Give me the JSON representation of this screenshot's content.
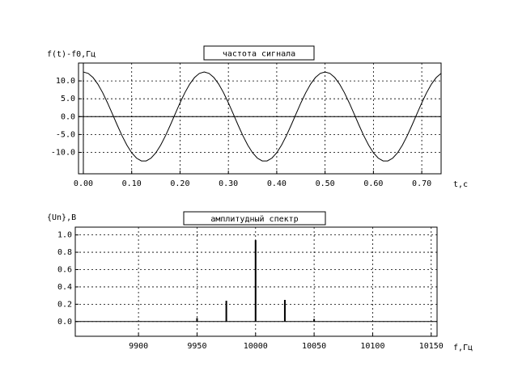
{
  "chart_data": [
    {
      "type": "line",
      "title": "частота сигнала",
      "ylabel": "f(t)-f0,Гц",
      "xlabel": "t,c",
      "x": [
        0.0,
        0.01,
        0.02,
        0.03,
        0.04,
        0.05,
        0.06,
        0.07,
        0.08,
        0.09,
        0.1,
        0.11,
        0.12,
        0.13,
        0.14,
        0.15,
        0.16,
        0.17,
        0.18,
        0.19,
        0.2,
        0.21,
        0.22,
        0.23,
        0.24,
        0.25,
        0.26,
        0.27,
        0.28,
        0.29,
        0.3,
        0.31,
        0.32,
        0.33,
        0.34,
        0.35,
        0.36,
        0.37,
        0.38,
        0.39,
        0.4,
        0.41,
        0.42,
        0.43,
        0.44,
        0.45,
        0.46,
        0.47,
        0.48,
        0.49,
        0.5,
        0.51,
        0.52,
        0.53,
        0.54,
        0.55,
        0.56,
        0.57,
        0.58,
        0.59,
        0.6,
        0.61,
        0.62,
        0.63,
        0.64,
        0.65,
        0.66,
        0.67,
        0.68,
        0.69,
        0.7,
        0.71,
        0.72,
        0.73,
        0.74
      ],
      "values": [
        12.5,
        12.11,
        10.95,
        9.11,
        6.7,
        3.86,
        0.78,
        -2.34,
        -5.32,
        -7.97,
        -10.11,
        -11.62,
        -12.4,
        -12.4,
        -11.62,
        -10.11,
        -7.97,
        -5.32,
        -2.34,
        0.78,
        3.86,
        6.7,
        9.11,
        10.95,
        12.11,
        12.5,
        12.11,
        10.95,
        9.11,
        6.7,
        3.86,
        0.78,
        -2.34,
        -5.32,
        -7.97,
        -10.11,
        -11.62,
        -12.4,
        -12.4,
        -11.62,
        -10.11,
        -7.97,
        -5.32,
        -2.34,
        0.78,
        3.86,
        6.7,
        9.11,
        10.95,
        12.11,
        12.5,
        12.11,
        10.95,
        9.11,
        6.7,
        3.86,
        0.78,
        -2.34,
        -5.32,
        -7.97,
        -10.11,
        -11.62,
        -12.4,
        -12.4,
        -11.62,
        -10.11,
        -7.97,
        -5.32,
        -2.34,
        0.78,
        3.86,
        6.7,
        9.11,
        10.95,
        12.11
      ],
      "color": "#000000",
      "xlim": [
        -0.01,
        0.74
      ],
      "xticks": [
        {
          "value": 0,
          "label": "0.00"
        },
        {
          "value": 0.1,
          "label": "0.10"
        },
        {
          "value": 0.2,
          "label": "0.20"
        },
        {
          "value": 0.3,
          "label": "0.30"
        },
        {
          "value": 0.4,
          "label": "0.40"
        },
        {
          "value": 0.5,
          "label": "0.50"
        },
        {
          "value": 0.6,
          "label": "0.60"
        },
        {
          "value": 0.7,
          "label": "0.70"
        }
      ],
      "ylim": [
        -16,
        15
      ],
      "yticks": [
        {
          "value": -10,
          "label": "-10.0"
        },
        {
          "value": -5,
          "label": "-5.0"
        },
        {
          "value": 0,
          "label": "0.0"
        },
        {
          "value": 5,
          "label": "5.0"
        },
        {
          "value": 10,
          "label": "10.0"
        }
      ],
      "grid": true
    },
    {
      "type": "bar",
      "title": "амплитудный спектр",
      "ylabel": "{Un},B",
      "xlabel": "f,Гц",
      "x": [
        9950,
        9975,
        10000,
        10025,
        10050
      ],
      "values": [
        0.04,
        0.24,
        0.94,
        0.25,
        0.03
      ],
      "color": "#000000",
      "xlim": [
        9846,
        10155
      ],
      "xticks": [
        9900,
        9950,
        10000,
        10050,
        10100,
        10150
      ],
      "ylim": [
        -0.17,
        1.09
      ],
      "yticks": [
        {
          "value": 0,
          "label": "0.0"
        },
        {
          "value": 0.2,
          "label": "0.2"
        },
        {
          "value": 0.4,
          "label": "0.4"
        },
        {
          "value": 0.6,
          "label": "0.6"
        },
        {
          "value": 0.8,
          "label": "0.8"
        },
        {
          "value": 1.0,
          "label": "1.0"
        }
      ],
      "grid": true
    }
  ]
}
